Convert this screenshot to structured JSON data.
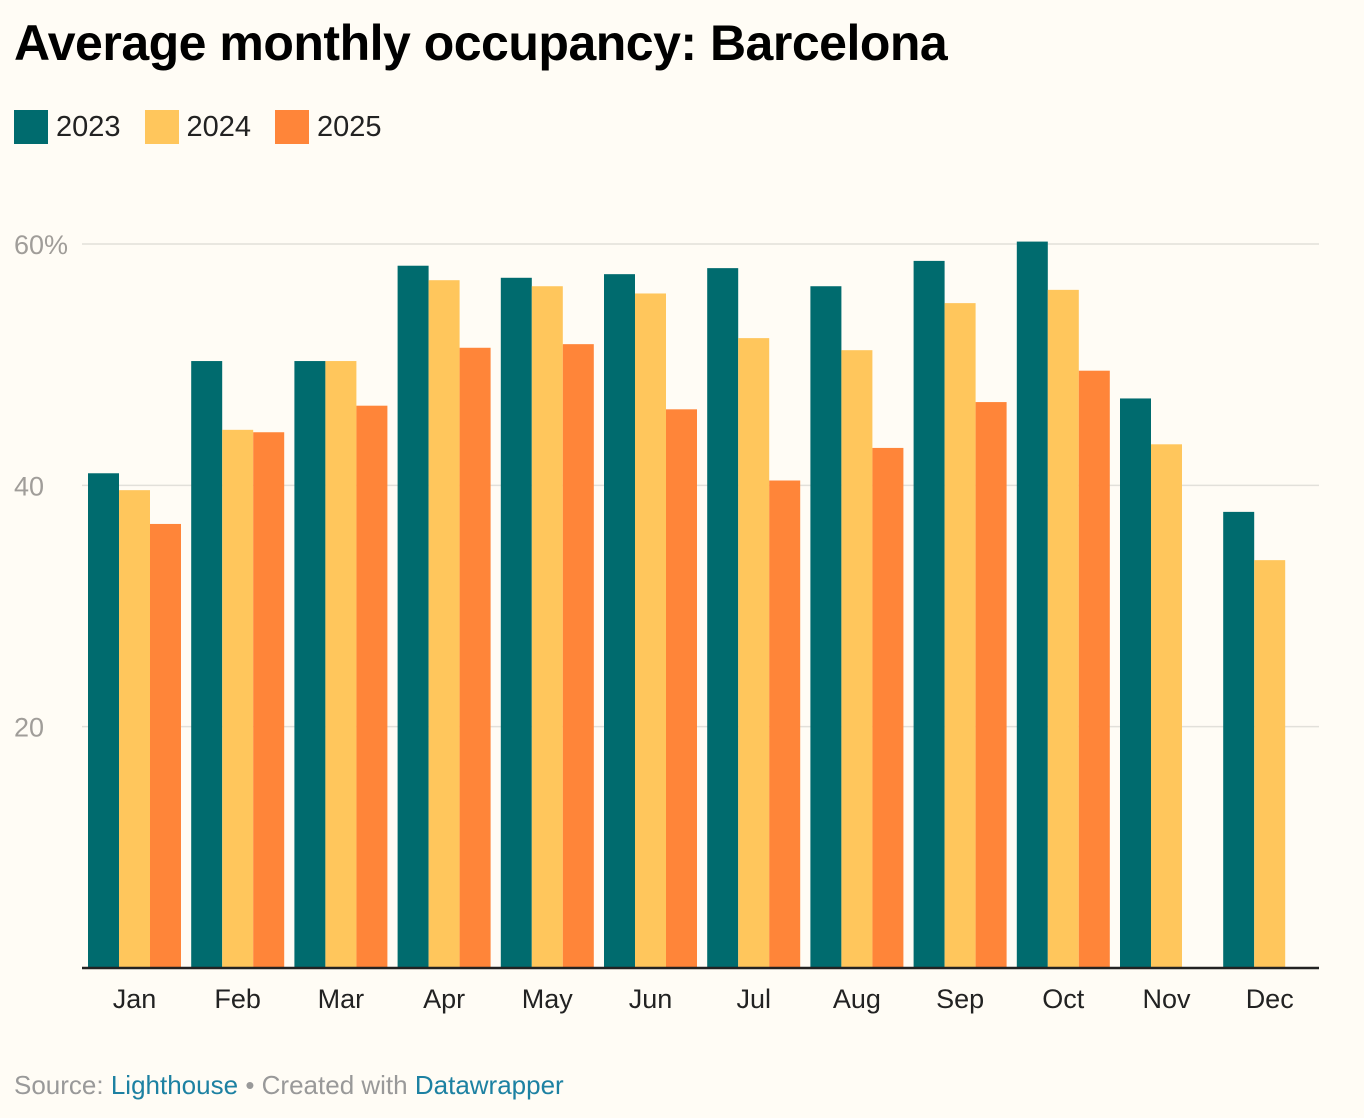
{
  "chart_data": {
    "type": "bar",
    "title": "Average monthly occupancy: Barcelona",
    "categories": [
      "Jan",
      "Feb",
      "Mar",
      "Apr",
      "May",
      "Jun",
      "Jul",
      "Aug",
      "Sep",
      "Oct",
      "Nov",
      "Dec"
    ],
    "series": [
      {
        "name": "2023",
        "color": "#006b6e",
        "values": [
          41.0,
          50.3,
          50.3,
          58.2,
          57.2,
          57.5,
          58.0,
          56.5,
          58.6,
          60.2,
          47.2,
          37.8
        ]
      },
      {
        "name": "2024",
        "color": "#ffc65c",
        "values": [
          39.6,
          44.6,
          50.3,
          57.0,
          56.5,
          55.9,
          52.2,
          51.2,
          55.1,
          56.2,
          43.4,
          33.8
        ]
      },
      {
        "name": "2025",
        "color": "#ff8539",
        "values": [
          36.8,
          44.4,
          46.6,
          51.4,
          51.7,
          46.3,
          40.4,
          43.1,
          46.9,
          49.5,
          null,
          null
        ]
      }
    ],
    "y_ticks": [
      "60%",
      "40",
      "20"
    ],
    "y_tick_values": [
      60,
      40,
      20
    ],
    "ylim": [
      0,
      60
    ],
    "xlabel": "",
    "ylabel": "",
    "legend_position": "top-left",
    "grid": true
  },
  "footer": {
    "source_label": "Source:",
    "source_link": "Lighthouse",
    "separator": "•",
    "created_label": "Created with",
    "created_link": "Datawrapper"
  }
}
